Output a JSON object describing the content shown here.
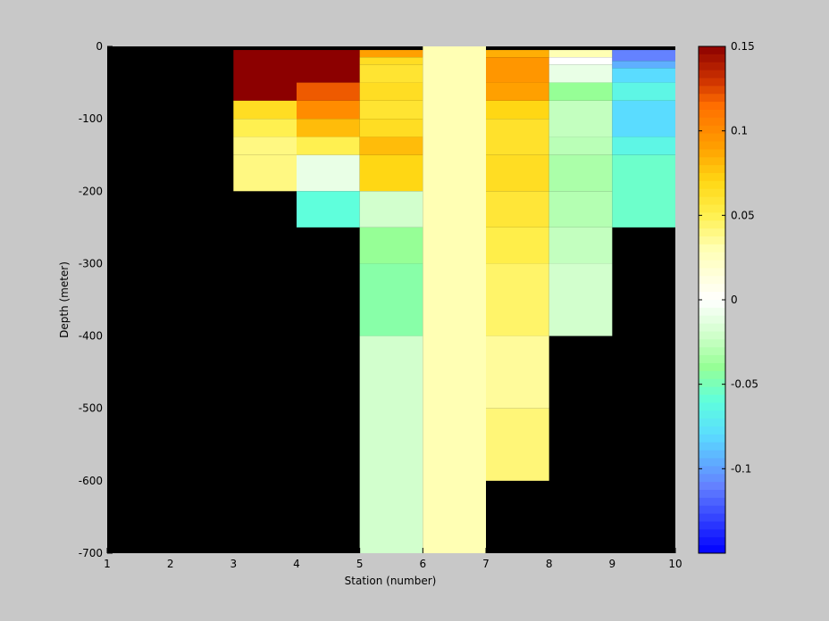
{
  "chart_data": {
    "type": "heatmap",
    "title": "",
    "xlabel": "Station (number)",
    "ylabel": "Depth (meter)",
    "xlim": [
      1,
      10
    ],
    "ylim": [
      -700,
      0
    ],
    "xticks": [
      "1",
      "2",
      "3",
      "4",
      "5",
      "6",
      "7",
      "8",
      "9",
      "10"
    ],
    "yticks": [
      "0",
      "-100",
      "-200",
      "-300",
      "-400",
      "-500",
      "-600",
      "-700"
    ],
    "clim": [
      -0.15,
      0.15
    ],
    "colorbar_ticks": [
      "0.15",
      "0.1",
      "0.05",
      "0",
      "-0.05",
      "-0.1"
    ],
    "colormap": "jet-like with white at zero",
    "missing_value_color": "#000000",
    "columns": [
      {
        "x": [
          1,
          2
        ],
        "cells": []
      },
      {
        "x": [
          2,
          3
        ],
        "cells": []
      },
      {
        "x": [
          3,
          4
        ],
        "cells": [
          {
            "depth": [
              0,
              -5
            ],
            "value": null
          },
          {
            "depth": [
              -5,
              -75
            ],
            "value": 0.15
          },
          {
            "depth": [
              -75,
              -100
            ],
            "value": 0.065
          },
          {
            "depth": [
              -100,
              -125
            ],
            "value": 0.05
          },
          {
            "depth": [
              -125,
              -150
            ],
            "value": 0.04
          },
          {
            "depth": [
              -150,
              -200
            ],
            "value": 0.04
          }
        ]
      },
      {
        "x": [
          4,
          5
        ],
        "cells": [
          {
            "depth": [
              0,
              -5
            ],
            "value": null
          },
          {
            "depth": [
              -5,
              -50
            ],
            "value": 0.15
          },
          {
            "depth": [
              -50,
              -75
            ],
            "value": 0.12
          },
          {
            "depth": [
              -75,
              -100
            ],
            "value": 0.1
          },
          {
            "depth": [
              -100,
              -125
            ],
            "value": 0.08
          },
          {
            "depth": [
              -125,
              -150
            ],
            "value": 0.05
          },
          {
            "depth": [
              -150,
              -200
            ],
            "value": -0.01
          },
          {
            "depth": [
              -200,
              -250
            ],
            "value": -0.06
          }
        ]
      },
      {
        "x": [
          5,
          6
        ],
        "cells": [
          {
            "depth": [
              0,
              -5
            ],
            "value": null
          },
          {
            "depth": [
              -5,
              -15
            ],
            "value": 0.09
          },
          {
            "depth": [
              -15,
              -25
            ],
            "value": 0.065
          },
          {
            "depth": [
              -25,
              -50
            ],
            "value": 0.06
          },
          {
            "depth": [
              -50,
              -75
            ],
            "value": 0.065
          },
          {
            "depth": [
              -75,
              -100
            ],
            "value": 0.06
          },
          {
            "depth": [
              -100,
              -125
            ],
            "value": 0.065
          },
          {
            "depth": [
              -125,
              -150
            ],
            "value": 0.08
          },
          {
            "depth": [
              -150,
              -200
            ],
            "value": 0.07
          },
          {
            "depth": [
              -200,
              -250
            ],
            "value": -0.02
          },
          {
            "depth": [
              -250,
              -300
            ],
            "value": -0.04
          },
          {
            "depth": [
              -300,
              -400
            ],
            "value": -0.045
          },
          {
            "depth": [
              -400,
              -700
            ],
            "value": -0.02
          }
        ]
      },
      {
        "x": [
          6,
          7
        ],
        "cells": [
          {
            "depth": [
              0,
              -700
            ],
            "value": 0.03
          }
        ]
      },
      {
        "x": [
          7,
          8
        ],
        "cells": [
          {
            "depth": [
              0,
              -5
            ],
            "value": null
          },
          {
            "depth": [
              -5,
              -15
            ],
            "value": 0.085
          },
          {
            "depth": [
              -15,
              -50
            ],
            "value": 0.095
          },
          {
            "depth": [
              -50,
              -75
            ],
            "value": 0.09
          },
          {
            "depth": [
              -75,
              -100
            ],
            "value": 0.07
          },
          {
            "depth": [
              -100,
              -150
            ],
            "value": 0.062
          },
          {
            "depth": [
              -150,
              -200
            ],
            "value": 0.065
          },
          {
            "depth": [
              -200,
              -250
            ],
            "value": 0.058
          },
          {
            "depth": [
              -250,
              -300
            ],
            "value": 0.052
          },
          {
            "depth": [
              -300,
              -400
            ],
            "value": 0.045
          },
          {
            "depth": [
              -400,
              -500
            ],
            "value": 0.035
          },
          {
            "depth": [
              -500,
              -600
            ],
            "value": 0.042
          }
        ]
      },
      {
        "x": [
          8,
          9
        ],
        "cells": [
          {
            "depth": [
              0,
              -5
            ],
            "value": null
          },
          {
            "depth": [
              -5,
              -15
            ],
            "value": 0.03
          },
          {
            "depth": [
              -15,
              -25
            ],
            "value": 0.0
          },
          {
            "depth": [
              -25,
              -50
            ],
            "value": -0.01
          },
          {
            "depth": [
              -50,
              -75
            ],
            "value": -0.04
          },
          {
            "depth": [
              -75,
              -125
            ],
            "value": -0.025
          },
          {
            "depth": [
              -125,
              -150
            ],
            "value": -0.028
          },
          {
            "depth": [
              -150,
              -200
            ],
            "value": -0.033
          },
          {
            "depth": [
              -200,
              -250
            ],
            "value": -0.03
          },
          {
            "depth": [
              -250,
              -300
            ],
            "value": -0.025
          },
          {
            "depth": [
              -300,
              -400
            ],
            "value": -0.02
          }
        ]
      },
      {
        "x": [
          9,
          10
        ],
        "cells": [
          {
            "depth": [
              0,
              -5
            ],
            "value": null
          },
          {
            "depth": [
              -5,
              -20
            ],
            "value": -0.11
          },
          {
            "depth": [
              -20,
              -30
            ],
            "value": -0.095
          },
          {
            "depth": [
              -30,
              -50
            ],
            "value": -0.08
          },
          {
            "depth": [
              -50,
              -75
            ],
            "value": -0.065
          },
          {
            "depth": [
              -75,
              -125
            ],
            "value": -0.08
          },
          {
            "depth": [
              -125,
              -150
            ],
            "value": -0.065
          },
          {
            "depth": [
              -150,
              -250
            ],
            "value": -0.055
          }
        ]
      }
    ]
  }
}
